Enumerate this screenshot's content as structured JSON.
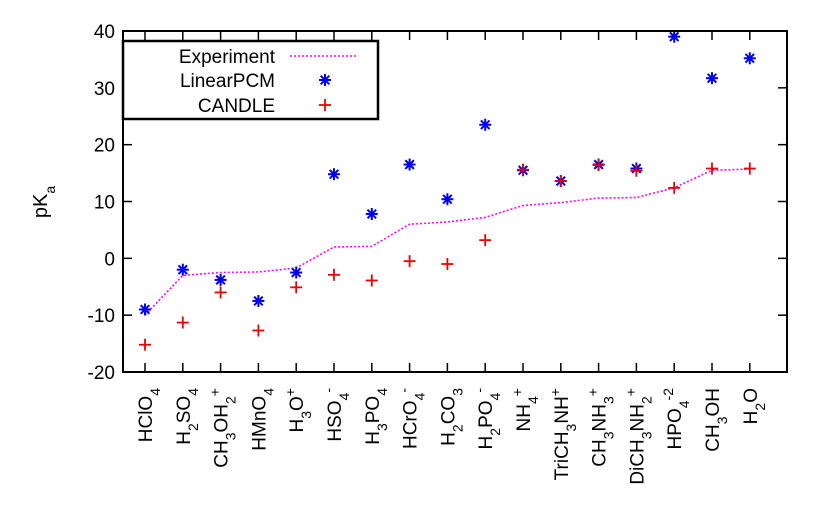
{
  "chart_data": {
    "type": "scatter",
    "xlabel": "",
    "ylabel": {
      "base": "pK",
      "sub": "a"
    },
    "ylim": [
      -20,
      40
    ],
    "yticks": [
      -20,
      -10,
      0,
      10,
      20,
      30,
      40
    ],
    "grid": false,
    "legend_position": "top-left",
    "categories": [
      [
        {
          "t": "HClO"
        },
        {
          "t": "4",
          "s": "sub"
        }
      ],
      [
        {
          "t": "H"
        },
        {
          "t": "2",
          "s": "sub"
        },
        {
          "t": "SO"
        },
        {
          "t": "4",
          "s": "sub"
        }
      ],
      [
        {
          "t": "CH"
        },
        {
          "t": "3",
          "s": "sub"
        },
        {
          "t": "OH"
        },
        {
          "t": "2",
          "s": "sub"
        },
        {
          "t": "+",
          "s": "sup"
        }
      ],
      [
        {
          "t": "HMnO"
        },
        {
          "t": "4",
          "s": "sub"
        }
      ],
      [
        {
          "t": "H"
        },
        {
          "t": "3",
          "s": "sub"
        },
        {
          "t": "O"
        },
        {
          "t": "+",
          "s": "sup"
        }
      ],
      [
        {
          "t": "HSO"
        },
        {
          "t": "4",
          "s": "sub"
        },
        {
          "t": "-",
          "s": "sup"
        }
      ],
      [
        {
          "t": "H"
        },
        {
          "t": "3",
          "s": "sub"
        },
        {
          "t": "PO"
        },
        {
          "t": "4",
          "s": "sub"
        }
      ],
      [
        {
          "t": "HCrO"
        },
        {
          "t": "4",
          "s": "sub"
        },
        {
          "t": "-",
          "s": "sup"
        }
      ],
      [
        {
          "t": "H"
        },
        {
          "t": "2",
          "s": "sub"
        },
        {
          "t": "CO"
        },
        {
          "t": "3",
          "s": "sub"
        }
      ],
      [
        {
          "t": "H"
        },
        {
          "t": "2",
          "s": "sub"
        },
        {
          "t": "PO"
        },
        {
          "t": "4",
          "s": "sub"
        },
        {
          "t": "-",
          "s": "sup"
        }
      ],
      [
        {
          "t": "NH"
        },
        {
          "t": "4",
          "s": "sub"
        },
        {
          "t": "+",
          "s": "sup"
        }
      ],
      [
        {
          "t": "TriCH"
        },
        {
          "t": "3",
          "s": "sub"
        },
        {
          "t": "NH"
        },
        {
          "t": "+",
          "s": "sup"
        }
      ],
      [
        {
          "t": "CH"
        },
        {
          "t": "3",
          "s": "sub"
        },
        {
          "t": "NH"
        },
        {
          "t": "3",
          "s": "sub"
        },
        {
          "t": "+",
          "s": "sup"
        }
      ],
      [
        {
          "t": "DiCH"
        },
        {
          "t": "3",
          "s": "sub"
        },
        {
          "t": "NH"
        },
        {
          "t": "2",
          "s": "sub"
        },
        {
          "t": "+",
          "s": "sup"
        }
      ],
      [
        {
          "t": "HPO"
        },
        {
          "t": "4",
          "s": "sub"
        },
        {
          "t": "-2",
          "s": "sup"
        }
      ],
      [
        {
          "t": "CH"
        },
        {
          "t": "3",
          "s": "sub"
        },
        {
          "t": "OH"
        }
      ],
      [
        {
          "t": "H"
        },
        {
          "t": "2",
          "s": "sub"
        },
        {
          "t": "O"
        }
      ]
    ],
    "series": [
      {
        "name": "Experiment",
        "style": "dotted-line",
        "color": "#ff00ff",
        "values": [
          -10,
          -3,
          -2.5,
          -2.4,
          -1.7,
          2,
          2.1,
          6,
          6.4,
          7.2,
          9.3,
          9.8,
          10.6,
          10.7,
          12.4,
          15.5,
          15.7
        ]
      },
      {
        "name": "LinearPCM",
        "style": "asterisk",
        "color": "#0000ee",
        "values": [
          -9,
          -2,
          -3.8,
          -7.5,
          -2.5,
          14.8,
          7.8,
          16.5,
          10.4,
          23.5,
          15.5,
          13.6,
          16.5,
          15.8,
          39,
          31.7,
          35.2
        ]
      },
      {
        "name": "CANDLE",
        "style": "plus",
        "color": "#ee0000",
        "values": [
          -15.2,
          -11.3,
          -6,
          -12.7,
          -5.1,
          -2.9,
          -3.9,
          -0.5,
          -1,
          3.2,
          15.6,
          13.6,
          16.4,
          15.4,
          12.4,
          15.8,
          15.8
        ]
      }
    ]
  }
}
